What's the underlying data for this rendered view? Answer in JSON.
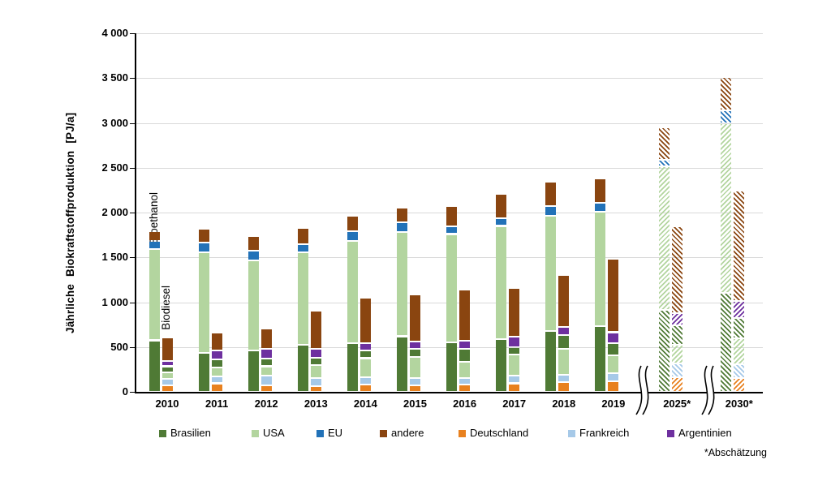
{
  "chart_data": {
    "type": "bar",
    "stacked": true,
    "grid": "horizontal-gray",
    "legend_position": "bottom",
    "ylabel": "Jährliche Biokraftstoffproduktion [PJ/a]",
    "xlabel": "",
    "unit": "PJ/a",
    "ylim": [
      0,
      4000
    ],
    "ytick_step": 500,
    "ytick_labels": [
      "0",
      "500",
      "1 000",
      "1 500",
      "2 000",
      "2 500",
      "3 000",
      "3 500",
      "4 000"
    ],
    "categories": [
      "2010",
      "2011",
      "2012",
      "2013",
      "2014",
      "2015",
      "2016",
      "2017",
      "2018",
      "2019",
      "2025*",
      "2030*"
    ],
    "estimate_flags": [
      false,
      false,
      false,
      false,
      false,
      false,
      false,
      false,
      false,
      false,
      true,
      true
    ],
    "axis_breaks_between": [
      [
        "2019",
        "2025*"
      ],
      [
        "2025*",
        "2030*"
      ]
    ],
    "group_labels": {
      "left_bar": "Bioethanol",
      "right_bar": "Biodiesel"
    },
    "groups": [
      {
        "name": "Bioethanol",
        "stack_order_bottom_to_top": [
          "Brasilien",
          "USA",
          "EU",
          "andere"
        ],
        "series": [
          {
            "name": "Brasilien",
            "values": [
              575,
              435,
              465,
              525,
              540,
              620,
              555,
              585,
              675,
              735,
              915,
              1100
            ]
          },
          {
            "name": "USA",
            "values": [
              1020,
              1125,
              1005,
              1035,
              1140,
              1165,
              1205,
              1265,
              1290,
              1270,
              1600,
              1900
            ]
          },
          {
            "name": "EU",
            "values": [
              90,
              105,
              105,
              90,
              110,
              105,
              90,
              90,
              105,
              105,
              75,
              140
            ]
          },
          {
            "name": "andere",
            "values": [
              110,
              150,
              165,
              180,
              170,
              165,
              220,
              265,
              270,
              270,
              360,
              375
            ]
          }
        ]
      },
      {
        "name": "Biodiesel",
        "stack_order_bottom_to_top": [
          "Deutschland",
          "Frankreich",
          "USA",
          "Brasilien",
          "Argentinien",
          "andere"
        ],
        "series": [
          {
            "name": "Deutschland",
            "values": [
              75,
              95,
              75,
              65,
              85,
              75,
              80,
              95,
              105,
              120,
              165,
              155
            ]
          },
          {
            "name": "Frankreich",
            "values": [
              70,
              75,
              105,
              85,
              80,
              80,
              70,
              85,
              90,
              85,
              150,
              150
            ]
          },
          {
            "name": "USA",
            "values": [
              70,
              100,
              105,
              145,
              210,
              235,
              185,
              240,
              285,
              200,
              210,
              295
            ]
          },
          {
            "name": "Brasilien",
            "values": [
              70,
              90,
              90,
              90,
              90,
              90,
              145,
              80,
              150,
              140,
              220,
              225
            ]
          },
          {
            "name": "Argentinien",
            "values": [
              55,
              105,
              105,
              95,
              80,
              85,
              90,
              115,
              90,
              120,
              130,
              190
            ]
          },
          {
            "name": "andere",
            "values": [
              270,
              195,
              225,
              425,
              505,
              525,
              575,
              545,
              585,
              820,
              975,
              1230
            ]
          }
        ]
      }
    ],
    "legend": [
      {
        "label": "Brasilien",
        "color": "#4f7a35"
      },
      {
        "label": "USA",
        "color": "#b3d59f"
      },
      {
        "label": "EU",
        "color": "#2272b8"
      },
      {
        "label": "andere",
        "color": "#8a4510"
      },
      {
        "label": "Deutschland",
        "color": "#e8811f"
      },
      {
        "label": "Frankreich",
        "color": "#a6c9e8"
      },
      {
        "label": "Argentinien",
        "color": "#6e309f"
      }
    ],
    "footnote": "*Abschätzung"
  }
}
